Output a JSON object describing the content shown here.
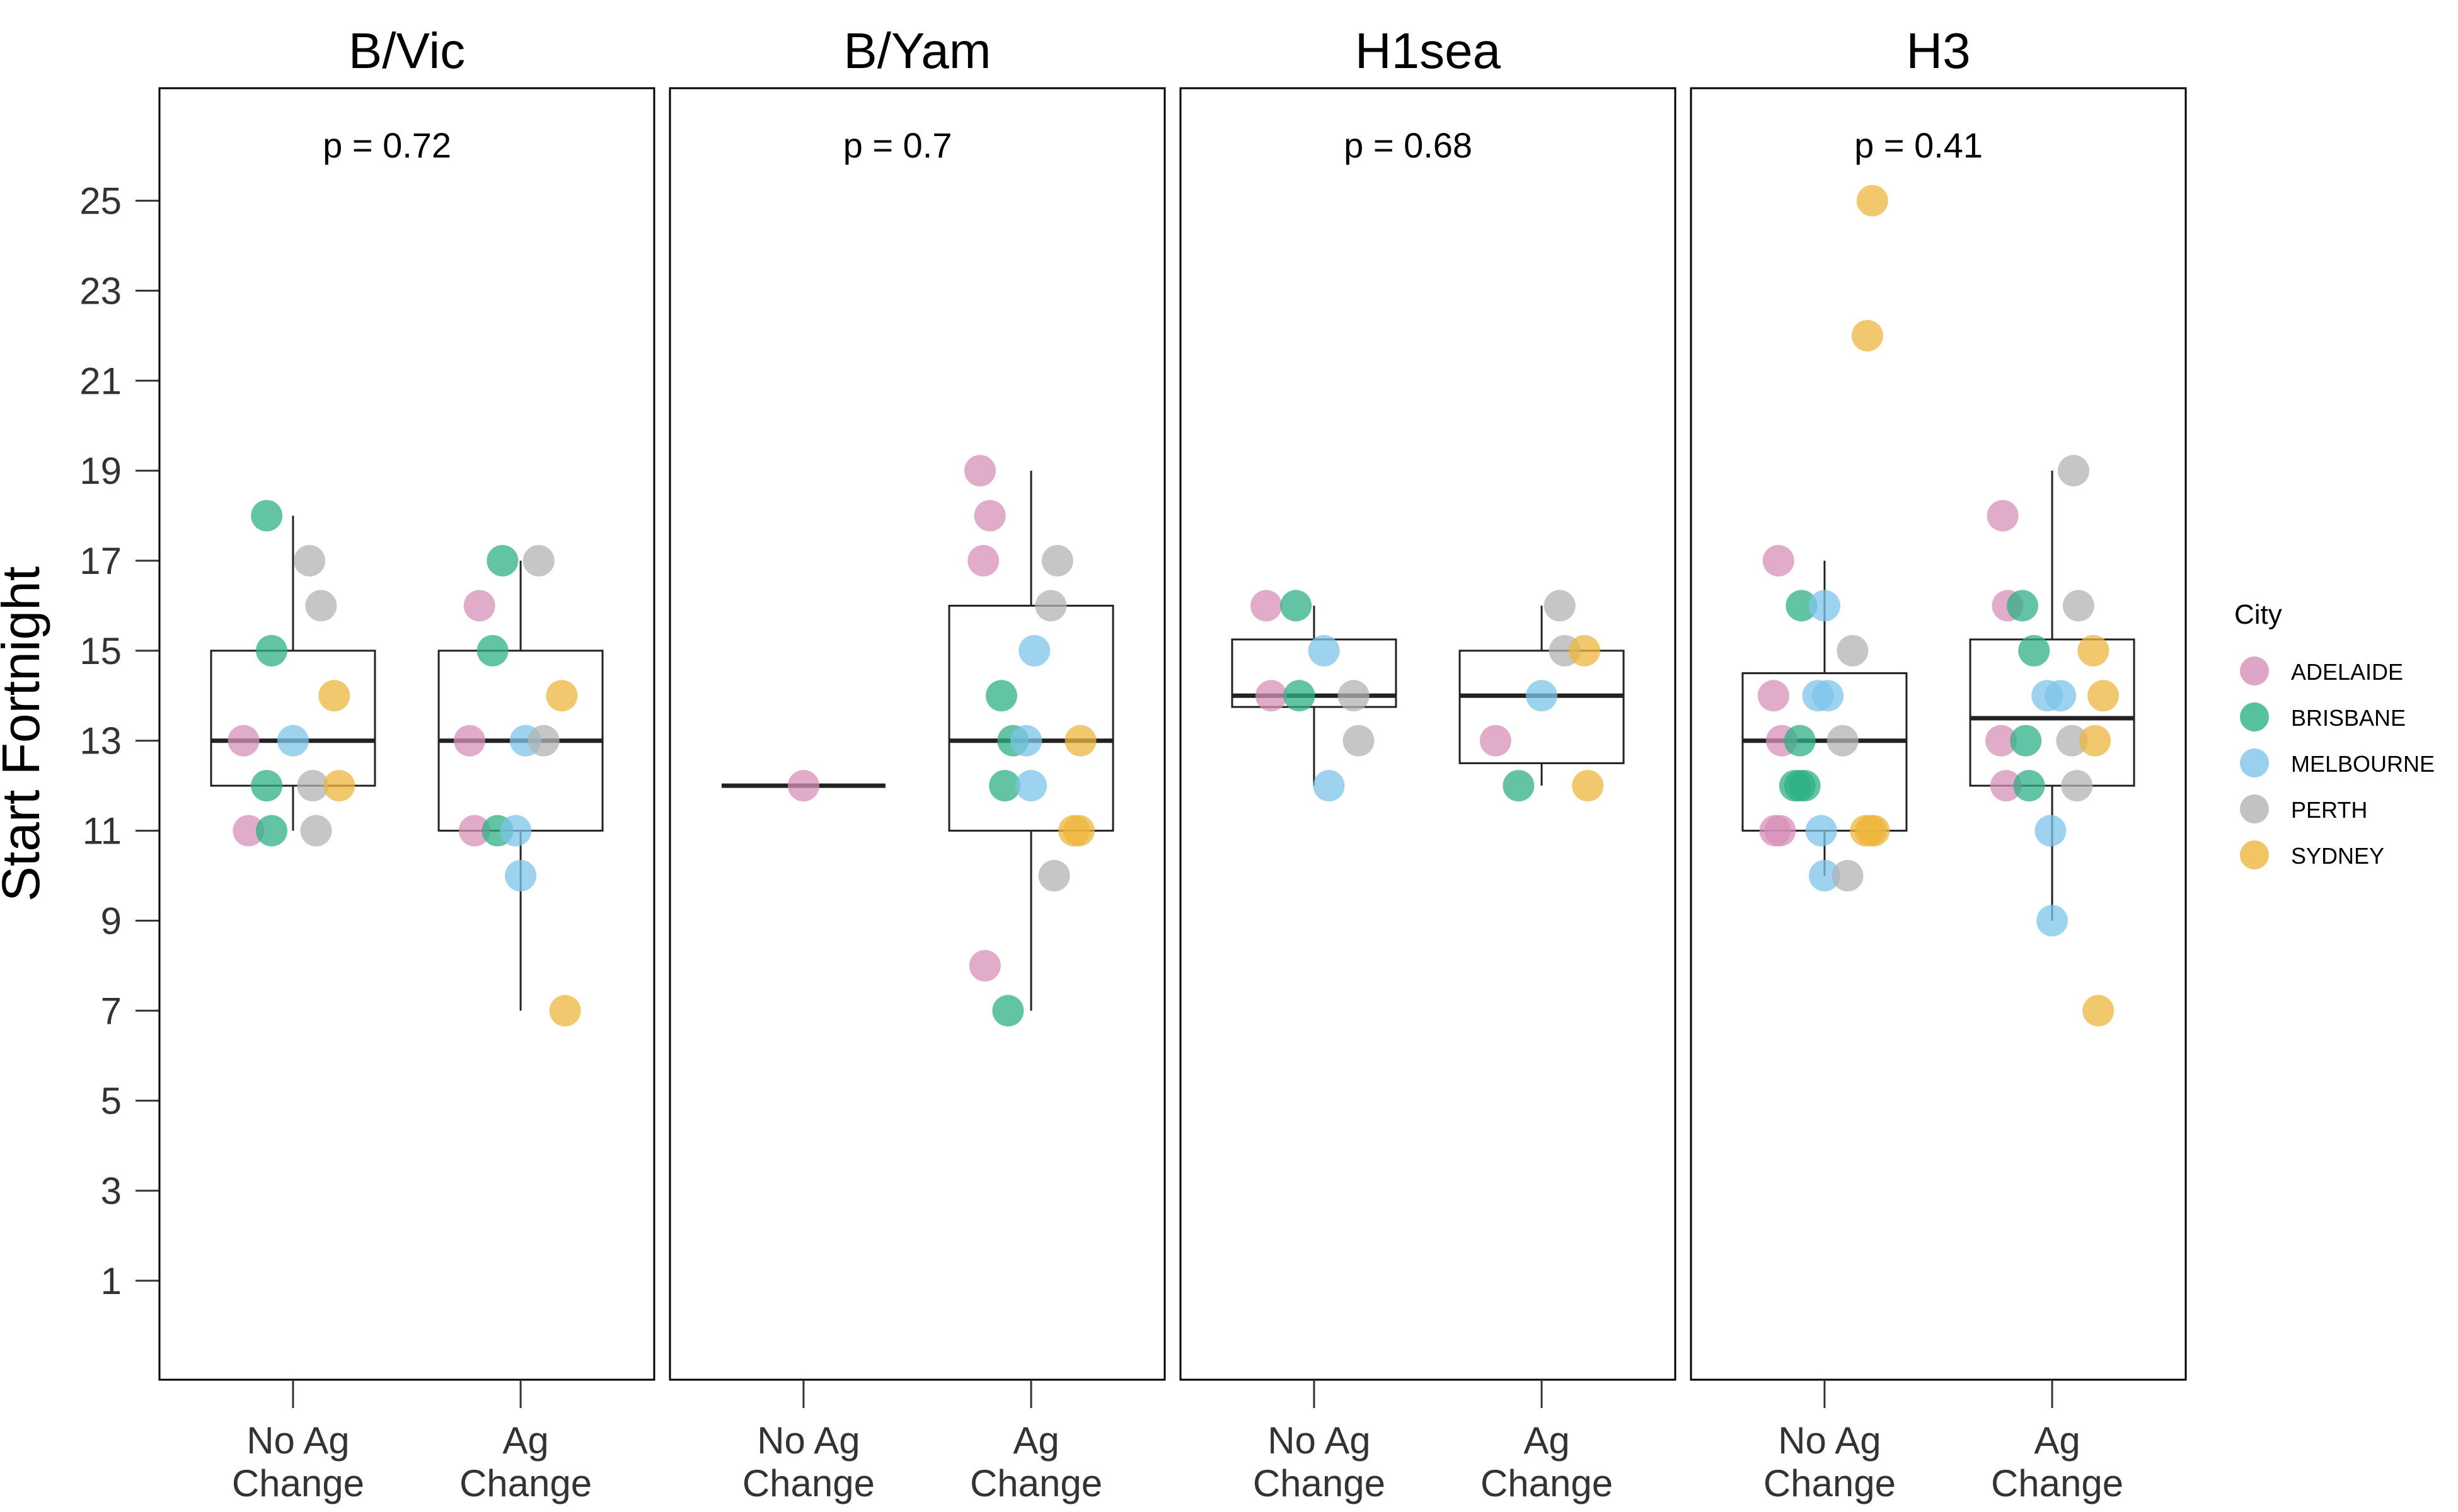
{
  "chart_data": {
    "type": "boxplot",
    "ylabel": "Start Fortnight",
    "yticks": [
      1,
      3,
      5,
      7,
      9,
      11,
      13,
      15,
      17,
      19,
      21,
      23,
      25
    ],
    "ylim": [
      -1.2,
      27.5
    ],
    "categories": [
      {
        "line1": "No Ag",
        "line2": "Change"
      },
      {
        "line1": "Ag",
        "line2": "Change"
      }
    ],
    "legend": {
      "title": "City",
      "items": [
        {
          "name": "ADELAIDE",
          "color": "#d78fb8"
        },
        {
          "name": "BRISBANE",
          "color": "#2db085"
        },
        {
          "name": "MELBOURNE",
          "color": "#7ec4ea"
        },
        {
          "name": "PERTH",
          "color": "#b3b3b3"
        },
        {
          "name": "SYDNEY",
          "color": "#edb63d"
        }
      ]
    },
    "panels": [
      {
        "title": "B/Vic",
        "p_text": "p = 0.72",
        "boxes": [
          {
            "q1": 12,
            "median": 13,
            "q3": 15,
            "wlo": 11,
            "whi": 18
          },
          {
            "q1": 11,
            "median": 13,
            "q3": 15,
            "wlo": 7,
            "whi": 17
          }
        ],
        "points": [
          {
            "g": 0,
            "j": -0.3,
            "y": 13,
            "city": "ADELAIDE"
          },
          {
            "g": 0,
            "j": -0.27,
            "y": 11,
            "city": "ADELAIDE"
          },
          {
            "g": 0,
            "j": -0.16,
            "y": 18,
            "city": "BRISBANE"
          },
          {
            "g": 0,
            "j": -0.13,
            "y": 15,
            "city": "BRISBANE"
          },
          {
            "g": 0,
            "j": -0.16,
            "y": 12,
            "city": "BRISBANE"
          },
          {
            "g": 0,
            "j": -0.13,
            "y": 11,
            "city": "BRISBANE"
          },
          {
            "g": 0,
            "j": 0.0,
            "y": 13,
            "city": "MELBOURNE"
          },
          {
            "g": 0,
            "j": 0.1,
            "y": 17,
            "city": "PERTH"
          },
          {
            "g": 0,
            "j": 0.17,
            "y": 16,
            "city": "PERTH"
          },
          {
            "g": 0,
            "j": 0.12,
            "y": 12,
            "city": "PERTH"
          },
          {
            "g": 0,
            "j": 0.14,
            "y": 11,
            "city": "PERTH"
          },
          {
            "g": 0,
            "j": 0.25,
            "y": 14,
            "city": "SYDNEY"
          },
          {
            "g": 0,
            "j": 0.28,
            "y": 12,
            "city": "SYDNEY"
          },
          {
            "g": 1,
            "j": -0.25,
            "y": 16,
            "city": "ADELAIDE"
          },
          {
            "g": 1,
            "j": -0.31,
            "y": 13,
            "city": "ADELAIDE"
          },
          {
            "g": 1,
            "j": -0.28,
            "y": 11,
            "city": "ADELAIDE"
          },
          {
            "g": 1,
            "j": -0.11,
            "y": 17,
            "city": "BRISBANE"
          },
          {
            "g": 1,
            "j": -0.17,
            "y": 15,
            "city": "BRISBANE"
          },
          {
            "g": 1,
            "j": -0.14,
            "y": 11,
            "city": "BRISBANE"
          },
          {
            "g": 1,
            "j": -0.03,
            "y": 11,
            "city": "MELBOURNE"
          },
          {
            "g": 1,
            "j": 0.03,
            "y": 13,
            "city": "MELBOURNE"
          },
          {
            "g": 1,
            "j": 0.0,
            "y": 10,
            "city": "MELBOURNE"
          },
          {
            "g": 1,
            "j": 0.11,
            "y": 17,
            "city": "PERTH"
          },
          {
            "g": 1,
            "j": 0.14,
            "y": 13,
            "city": "PERTH"
          },
          {
            "g": 1,
            "j": 0.25,
            "y": 14,
            "city": "SYDNEY"
          },
          {
            "g": 1,
            "j": 0.27,
            "y": 7,
            "city": "SYDNEY"
          }
        ]
      },
      {
        "title": "B/Yam",
        "p_text": "p = 0.7",
        "boxes": [
          {
            "q1": 12,
            "median": 12,
            "q3": 12,
            "wlo": 12,
            "whi": 12
          },
          {
            "q1": 11,
            "median": 13,
            "q3": 16,
            "wlo": 7,
            "whi": 19
          }
        ],
        "points": [
          {
            "g": 0,
            "j": 0.0,
            "y": 12,
            "city": "ADELAIDE"
          },
          {
            "g": 1,
            "j": -0.31,
            "y": 19,
            "city": "ADELAIDE"
          },
          {
            "g": 1,
            "j": -0.25,
            "y": 18,
            "city": "ADELAIDE"
          },
          {
            "g": 1,
            "j": -0.29,
            "y": 17,
            "city": "ADELAIDE"
          },
          {
            "g": 1,
            "j": -0.28,
            "y": 8,
            "city": "ADELAIDE"
          },
          {
            "g": 1,
            "j": -0.18,
            "y": 14,
            "city": "BRISBANE"
          },
          {
            "g": 1,
            "j": -0.11,
            "y": 13,
            "city": "BRISBANE"
          },
          {
            "g": 1,
            "j": -0.16,
            "y": 12,
            "city": "BRISBANE"
          },
          {
            "g": 1,
            "j": -0.14,
            "y": 7,
            "city": "BRISBANE"
          },
          {
            "g": 1,
            "j": 0.02,
            "y": 15,
            "city": "MELBOURNE"
          },
          {
            "g": 1,
            "j": -0.03,
            "y": 13,
            "city": "MELBOURNE"
          },
          {
            "g": 1,
            "j": 0.0,
            "y": 12,
            "city": "MELBOURNE"
          },
          {
            "g": 1,
            "j": 0.16,
            "y": 17,
            "city": "PERTH"
          },
          {
            "g": 1,
            "j": 0.12,
            "y": 16,
            "city": "PERTH"
          },
          {
            "g": 1,
            "j": 0.14,
            "y": 10,
            "city": "PERTH"
          },
          {
            "g": 1,
            "j": 0.3,
            "y": 13,
            "city": "SYDNEY"
          },
          {
            "g": 1,
            "j": 0.26,
            "y": 11,
            "city": "SYDNEY"
          },
          {
            "g": 1,
            "j": 0.29,
            "y": 11,
            "city": "SYDNEY"
          }
        ]
      },
      {
        "title": "H1sea",
        "p_text": "p = 0.68",
        "boxes": [
          {
            "q1": 13.75,
            "median": 14,
            "q3": 15.25,
            "wlo": 12,
            "whi": 16
          },
          {
            "q1": 12.5,
            "median": 14,
            "q3": 15,
            "wlo": 12,
            "whi": 16
          }
        ],
        "points": [
          {
            "g": 0,
            "j": -0.29,
            "y": 16,
            "city": "ADELAIDE"
          },
          {
            "g": 0,
            "j": -0.26,
            "y": 14,
            "city": "ADELAIDE"
          },
          {
            "g": 0,
            "j": -0.11,
            "y": 16,
            "city": "BRISBANE"
          },
          {
            "g": 0,
            "j": -0.09,
            "y": 14,
            "city": "BRISBANE"
          },
          {
            "g": 0,
            "j": 0.06,
            "y": 15,
            "city": "MELBOURNE"
          },
          {
            "g": 0,
            "j": 0.09,
            "y": 12,
            "city": "MELBOURNE"
          },
          {
            "g": 0,
            "j": 0.24,
            "y": 14,
            "city": "PERTH"
          },
          {
            "g": 0,
            "j": 0.27,
            "y": 13,
            "city": "PERTH"
          },
          {
            "g": 1,
            "j": -0.28,
            "y": 13,
            "city": "ADELAIDE"
          },
          {
            "g": 1,
            "j": -0.14,
            "y": 12,
            "city": "BRISBANE"
          },
          {
            "g": 1,
            "j": 0.0,
            "y": 14,
            "city": "MELBOURNE"
          },
          {
            "g": 1,
            "j": 0.11,
            "y": 16,
            "city": "PERTH"
          },
          {
            "g": 1,
            "j": 0.14,
            "y": 15,
            "city": "PERTH"
          },
          {
            "g": 1,
            "j": 0.26,
            "y": 15,
            "city": "SYDNEY"
          },
          {
            "g": 1,
            "j": 0.28,
            "y": 12,
            "city": "SYDNEY"
          }
        ]
      },
      {
        "title": "H3",
        "p_text": "p = 0.41",
        "boxes": [
          {
            "q1": 11,
            "median": 13,
            "q3": 14.5,
            "wlo": 10,
            "whi": 17
          },
          {
            "q1": 12,
            "median": 13.5,
            "q3": 15.25,
            "wlo": 9,
            "whi": 19
          }
        ],
        "points": [
          {
            "g": 0,
            "j": -0.28,
            "y": 17,
            "city": "ADELAIDE"
          },
          {
            "g": 0,
            "j": -0.31,
            "y": 14,
            "city": "ADELAIDE"
          },
          {
            "g": 0,
            "j": -0.26,
            "y": 13,
            "city": "ADELAIDE"
          },
          {
            "g": 0,
            "j": -0.3,
            "y": 11,
            "city": "ADELAIDE"
          },
          {
            "g": 0,
            "j": -0.27,
            "y": 11,
            "city": "ADELAIDE"
          },
          {
            "g": 0,
            "j": -0.14,
            "y": 16,
            "city": "BRISBANE"
          },
          {
            "g": 0,
            "j": -0.15,
            "y": 13,
            "city": "BRISBANE"
          },
          {
            "g": 0,
            "j": -0.18,
            "y": 12,
            "city": "BRISBANE"
          },
          {
            "g": 0,
            "j": -0.15,
            "y": 12,
            "city": "BRISBANE"
          },
          {
            "g": 0,
            "j": -0.12,
            "y": 12,
            "city": "BRISBANE"
          },
          {
            "g": 0,
            "j": 0.0,
            "y": 16,
            "city": "MELBOURNE"
          },
          {
            "g": 0,
            "j": -0.04,
            "y": 14,
            "city": "MELBOURNE"
          },
          {
            "g": 0,
            "j": 0.02,
            "y": 14,
            "city": "MELBOURNE"
          },
          {
            "g": 0,
            "j": -0.02,
            "y": 11,
            "city": "MELBOURNE"
          },
          {
            "g": 0,
            "j": 0.0,
            "y": 10,
            "city": "MELBOURNE"
          },
          {
            "g": 0,
            "j": 0.17,
            "y": 15,
            "city": "PERTH"
          },
          {
            "g": 0,
            "j": 0.11,
            "y": 13,
            "city": "PERTH"
          },
          {
            "g": 0,
            "j": 0.14,
            "y": 10,
            "city": "PERTH"
          },
          {
            "g": 0,
            "j": 0.29,
            "y": 25,
            "city": "SYDNEY"
          },
          {
            "g": 0,
            "j": 0.26,
            "y": 22,
            "city": "SYDNEY"
          },
          {
            "g": 0,
            "j": 0.25,
            "y": 11,
            "city": "SYDNEY"
          },
          {
            "g": 0,
            "j": 0.28,
            "y": 11,
            "city": "SYDNEY"
          },
          {
            "g": 0,
            "j": 0.3,
            "y": 11,
            "city": "SYDNEY"
          },
          {
            "g": 1,
            "j": -0.3,
            "y": 18,
            "city": "ADELAIDE"
          },
          {
            "g": 1,
            "j": -0.27,
            "y": 16,
            "city": "ADELAIDE"
          },
          {
            "g": 1,
            "j": -0.31,
            "y": 13,
            "city": "ADELAIDE"
          },
          {
            "g": 1,
            "j": -0.28,
            "y": 12,
            "city": "ADELAIDE"
          },
          {
            "g": 1,
            "j": -0.18,
            "y": 16,
            "city": "BRISBANE"
          },
          {
            "g": 1,
            "j": -0.11,
            "y": 15,
            "city": "BRISBANE"
          },
          {
            "g": 1,
            "j": -0.16,
            "y": 13,
            "city": "BRISBANE"
          },
          {
            "g": 1,
            "j": -0.14,
            "y": 12,
            "city": "BRISBANE"
          },
          {
            "g": 1,
            "j": -0.03,
            "y": 14,
            "city": "MELBOURNE"
          },
          {
            "g": 1,
            "j": 0.05,
            "y": 14,
            "city": "MELBOURNE"
          },
          {
            "g": 1,
            "j": -0.01,
            "y": 11,
            "city": "MELBOURNE"
          },
          {
            "g": 1,
            "j": 0.0,
            "y": 9,
            "city": "MELBOURNE"
          },
          {
            "g": 1,
            "j": 0.13,
            "y": 19,
            "city": "PERTH"
          },
          {
            "g": 1,
            "j": 0.16,
            "y": 16,
            "city": "PERTH"
          },
          {
            "g": 1,
            "j": 0.12,
            "y": 13,
            "city": "PERTH"
          },
          {
            "g": 1,
            "j": 0.15,
            "y": 12,
            "city": "PERTH"
          },
          {
            "g": 1,
            "j": 0.25,
            "y": 15,
            "city": "SYDNEY"
          },
          {
            "g": 1,
            "j": 0.31,
            "y": 14,
            "city": "SYDNEY"
          },
          {
            "g": 1,
            "j": 0.26,
            "y": 13,
            "city": "SYDNEY"
          },
          {
            "g": 1,
            "j": 0.28,
            "y": 7,
            "city": "SYDNEY"
          }
        ]
      }
    ]
  }
}
